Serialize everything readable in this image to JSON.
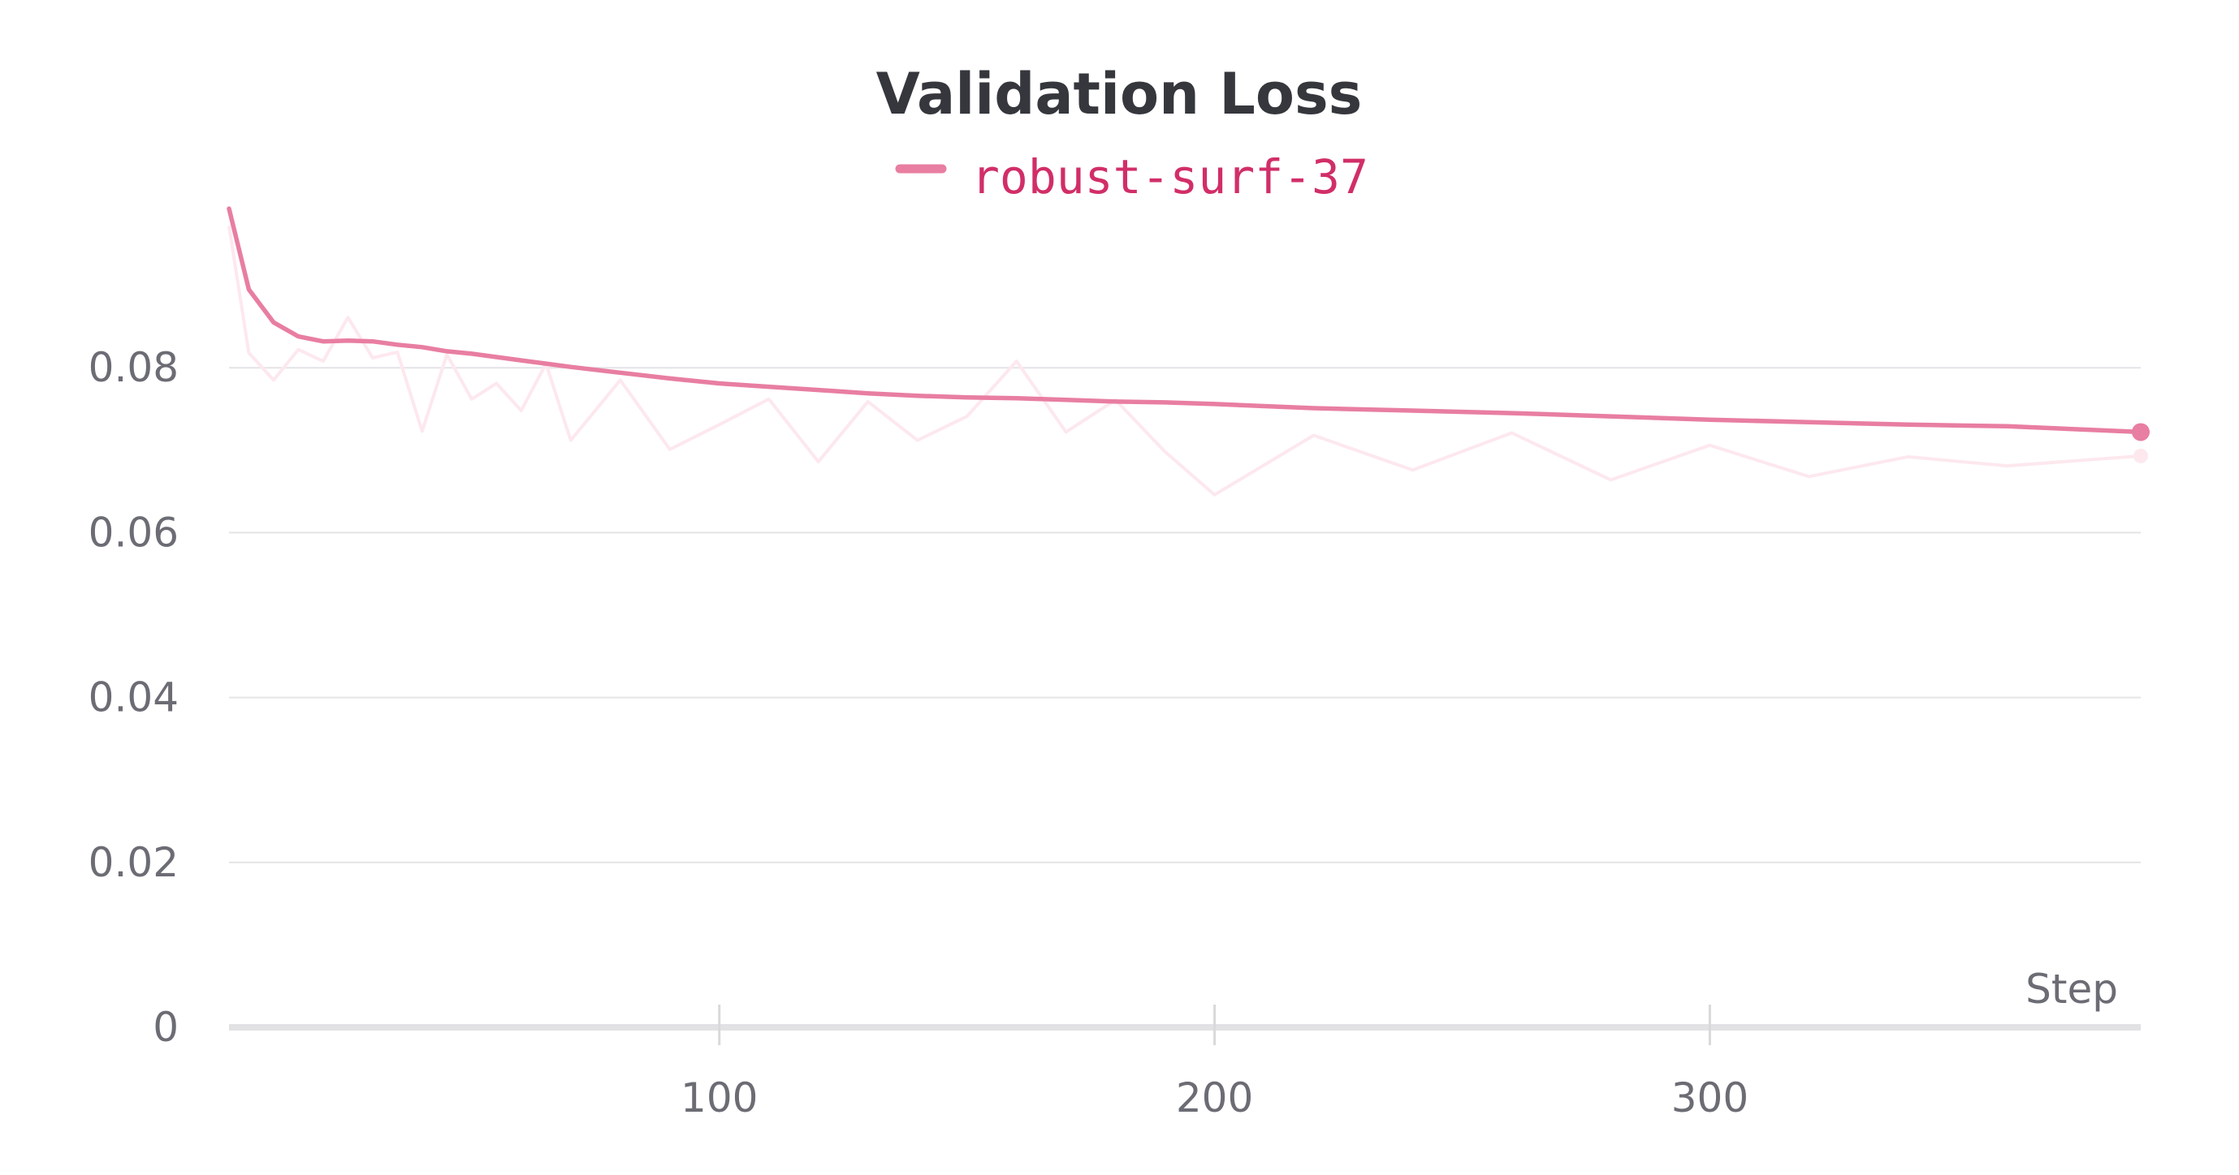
{
  "chart_data": {
    "type": "line",
    "title": "Validation Loss",
    "xlabel": "Step",
    "ylabel": "",
    "xlim": [
      1,
      387
    ],
    "ylim": [
      0,
      0.1
    ],
    "x_ticks": [
      100,
      200,
      300
    ],
    "y_ticks": [
      0,
      0.02,
      0.04,
      0.06,
      0.08
    ],
    "x_tick_labels": [
      "100",
      "200",
      "300"
    ],
    "y_tick_labels": [
      "0",
      "0.02",
      "0.04",
      "0.06",
      "0.08"
    ],
    "grid": true,
    "legend_position": "top-center",
    "series": [
      {
        "name": "robust-surf-37",
        "color": "#e87ea1",
        "raw_color": "#fde8ee",
        "x": [
          1,
          5,
          10,
          15,
          20,
          25,
          30,
          35,
          40,
          45,
          50,
          55,
          60,
          65,
          70,
          80,
          90,
          100,
          110,
          120,
          130,
          140,
          150,
          160,
          170,
          180,
          190,
          200,
          220,
          240,
          260,
          280,
          300,
          320,
          340,
          360,
          387
        ],
        "smoothed": [
          0.0993,
          0.0895,
          0.0855,
          0.0838,
          0.0832,
          0.0833,
          0.0832,
          0.0828,
          0.0825,
          0.082,
          0.0817,
          0.0813,
          0.0809,
          0.0805,
          0.0801,
          0.0794,
          0.0787,
          0.0781,
          0.0777,
          0.0773,
          0.0769,
          0.0766,
          0.0764,
          0.0763,
          0.0761,
          0.0759,
          0.0758,
          0.0756,
          0.0751,
          0.0748,
          0.0745,
          0.0741,
          0.0737,
          0.0734,
          0.0731,
          0.0729,
          0.0722
        ],
        "raw": [
          0.0972,
          0.0818,
          0.0785,
          0.0822,
          0.0808,
          0.0861,
          0.0812,
          0.0819,
          0.0723,
          0.0816,
          0.0762,
          0.0781,
          0.0748,
          0.0805,
          0.0712,
          0.0785,
          0.0701,
          0.0731,
          0.0762,
          0.0686,
          0.0759,
          0.0712,
          0.0741,
          0.0808,
          0.0722,
          0.0761,
          0.0698,
          0.0646,
          0.0718,
          0.0676,
          0.0721,
          0.0664,
          0.0706,
          0.0668,
          0.0692,
          0.0681,
          0.0693
        ]
      }
    ]
  }
}
